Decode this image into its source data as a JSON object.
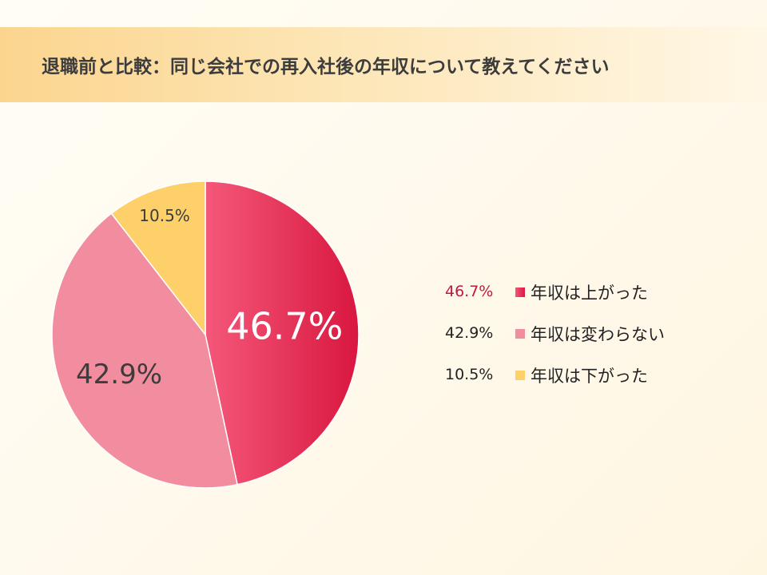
{
  "header": {
    "title": "退職前と比較：同じ会社での再入社後の年収について教えてください"
  },
  "chart_data": {
    "type": "pie",
    "title": "退職前と比較：同じ会社での再入社後の年収について教えてください",
    "legend_position": "right",
    "start_angle_deg": 0,
    "direction": "clockwise",
    "slices": [
      {
        "label": "年収は上がった",
        "value": 46.7,
        "display": "46.7%",
        "color": "#d9173f",
        "color_light": "#f4587a"
      },
      {
        "label": "年収は変わらない",
        "value": 42.9,
        "display": "42.9%",
        "color": "#f28da0"
      },
      {
        "label": "年収は下がった",
        "value": 10.5,
        "display": "10.5%",
        "color": "#fdd06a"
      }
    ]
  }
}
